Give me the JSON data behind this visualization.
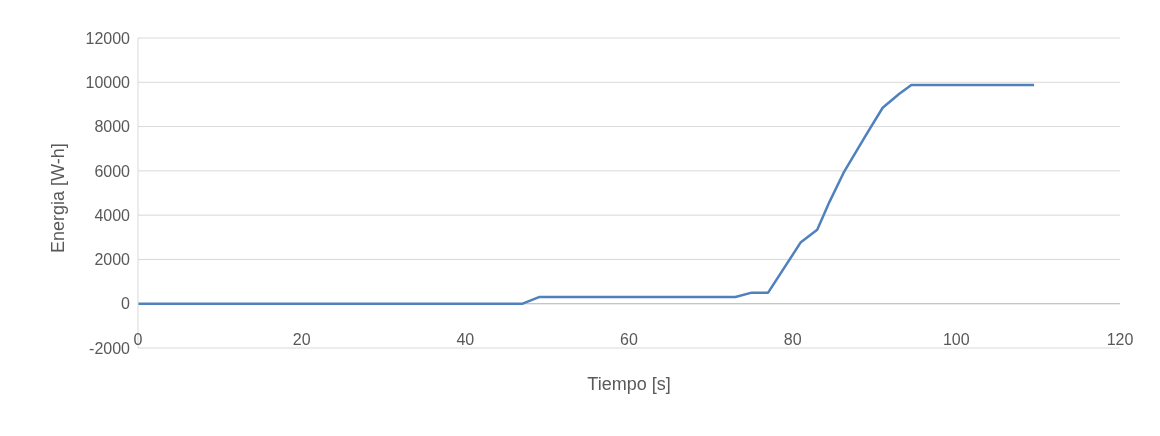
{
  "chart_data": {
    "type": "line",
    "xlabel": "Tiempo [s]",
    "ylabel": "Energia [W-h]",
    "x": [
      0,
      47,
      49,
      73,
      75,
      77,
      81,
      83,
      84.5,
      86.3,
      88.9,
      91,
      93,
      94.5,
      109.5
    ],
    "series": [
      {
        "color": "#4f81bd",
        "values": [
          0,
          0,
          300,
          300,
          500,
          500,
          2780,
          3340,
          4600,
          5970,
          7580,
          8850,
          9470,
          9880,
          9880
        ]
      }
    ],
    "xlim": [
      0,
      120
    ],
    "xticks": [
      0,
      20,
      40,
      60,
      80,
      100,
      120
    ],
    "ylim": [
      -2000,
      12000
    ],
    "yticks": [
      -2000,
      0,
      2000,
      4000,
      6000,
      8000,
      10000,
      12000
    ],
    "grid": "y",
    "legend": false,
    "marker": "none",
    "line_style": "solid"
  }
}
